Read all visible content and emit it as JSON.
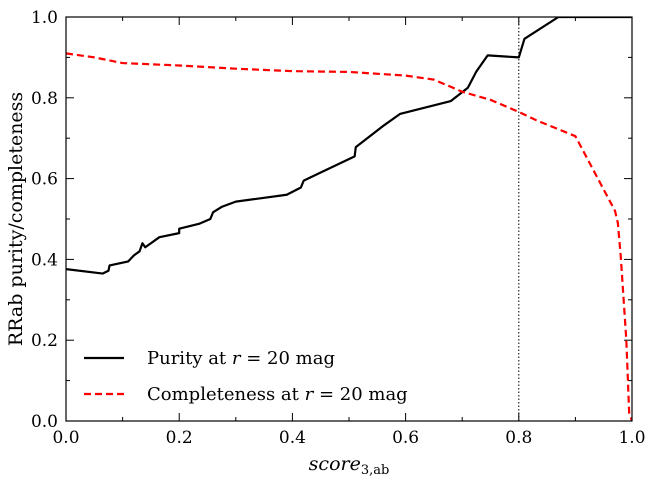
{
  "chart_data": {
    "type": "line",
    "xlabel_main": "score",
    "xlabel_sub": "3,ab",
    "ylabel": "RRab purity/completeness",
    "xlim": [
      0.0,
      1.0
    ],
    "ylim": [
      0.0,
      1.0
    ],
    "xticks": [
      "0.0",
      "0.2",
      "0.4",
      "0.6",
      "0.8",
      "1.0"
    ],
    "yticks": [
      "0.0",
      "0.2",
      "0.4",
      "0.6",
      "0.8",
      "1.0"
    ],
    "vline_x": 0.8,
    "grid": false,
    "legend_position": "lower-left",
    "series": [
      {
        "name": "Purity at r = 20 mag",
        "legend_prefix": "Purity at ",
        "legend_var": "r",
        "legend_suffix": " = 20 mag",
        "color": "#000000",
        "style": "solid",
        "x": [
          0.0,
          0.065,
          0.075,
          0.077,
          0.11,
          0.12,
          0.13,
          0.135,
          0.14,
          0.15,
          0.165,
          0.2,
          0.2,
          0.235,
          0.255,
          0.26,
          0.275,
          0.3,
          0.39,
          0.415,
          0.42,
          0.45,
          0.51,
          0.512,
          0.56,
          0.59,
          0.68,
          0.71,
          0.725,
          0.745,
          0.8,
          0.81,
          0.87,
          1.0
        ],
        "y": [
          0.376,
          0.365,
          0.372,
          0.385,
          0.395,
          0.41,
          0.42,
          0.44,
          0.43,
          0.44,
          0.455,
          0.465,
          0.476,
          0.488,
          0.5,
          0.517,
          0.53,
          0.543,
          0.56,
          0.578,
          0.595,
          0.615,
          0.655,
          0.678,
          0.73,
          0.76,
          0.792,
          0.825,
          0.865,
          0.905,
          0.9,
          0.946,
          1.0,
          1.0
        ]
      },
      {
        "name": "Completeness at r = 20 mag",
        "legend_prefix": "Completeness at ",
        "legend_var": "r",
        "legend_suffix": " = 20 mag",
        "color": "#ff0000",
        "style": "dashed",
        "x": [
          0.0,
          0.05,
          0.1,
          0.2,
          0.3,
          0.4,
          0.5,
          0.6,
          0.65,
          0.7,
          0.75,
          0.8,
          0.83,
          0.9,
          0.97,
          0.975,
          0.98,
          0.99,
          0.995,
          1.0
        ],
        "y": [
          0.91,
          0.9,
          0.886,
          0.88,
          0.872,
          0.866,
          0.864,
          0.855,
          0.845,
          0.815,
          0.795,
          0.765,
          0.745,
          0.705,
          0.52,
          0.49,
          0.41,
          0.2,
          0.02,
          0.0
        ]
      }
    ]
  }
}
